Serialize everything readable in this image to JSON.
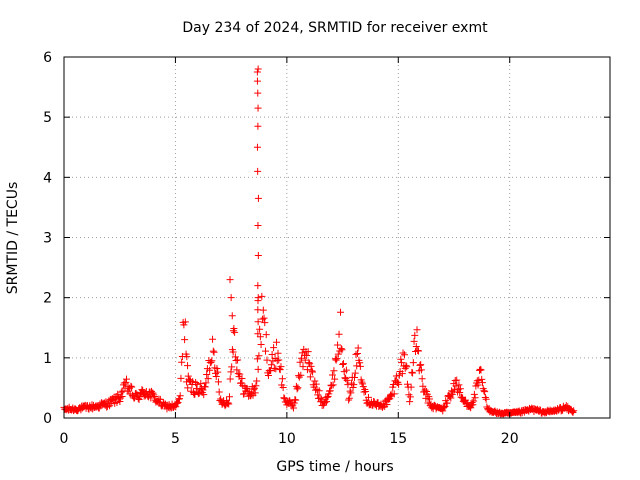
{
  "chart_data": {
    "type": "scatter",
    "title": "Day 234 of 2024, SRMTID for receiver exmt",
    "xlabel": "GPS time / hours",
    "ylabel": "SRMTID / TECUs",
    "xlim": [
      0,
      24.5
    ],
    "ylim": [
      0,
      6
    ],
    "xticks": [
      0,
      5,
      10,
      15,
      20
    ],
    "yticks": [
      0,
      1,
      2,
      3,
      4,
      5,
      6
    ],
    "grid": true,
    "marker": "+",
    "series": [
      {
        "name": "SRMTID",
        "color": "#ff0000",
        "x_start": 0.0,
        "x_step": 0.033,
        "envelope": [
          [
            0.0,
            0.15
          ],
          [
            0.5,
            0.15
          ],
          [
            1.0,
            0.18
          ],
          [
            1.5,
            0.2
          ],
          [
            2.0,
            0.25
          ],
          [
            2.5,
            0.35
          ],
          [
            2.8,
            0.55
          ],
          [
            3.2,
            0.35
          ],
          [
            3.7,
            0.45
          ],
          [
            4.2,
            0.3
          ],
          [
            4.5,
            0.2
          ],
          [
            5.0,
            0.2
          ],
          [
            5.2,
            0.3
          ],
          [
            5.4,
            1.75
          ],
          [
            5.6,
            0.55
          ],
          [
            6.0,
            0.5
          ],
          [
            6.3,
            0.45
          ],
          [
            6.7,
            1.3
          ],
          [
            7.0,
            0.3
          ],
          [
            7.4,
            0.25
          ],
          [
            7.6,
            1.5
          ],
          [
            7.9,
            0.6
          ],
          [
            8.3,
            0.4
          ],
          [
            8.6,
            0.5
          ],
          [
            8.9,
            1.8
          ],
          [
            9.2,
            0.8
          ],
          [
            9.6,
            1.15
          ],
          [
            9.9,
            0.3
          ],
          [
            10.3,
            0.2
          ],
          [
            10.8,
            1.2
          ],
          [
            11.2,
            0.6
          ],
          [
            11.6,
            0.25
          ],
          [
            12.0,
            0.5
          ],
          [
            12.4,
            1.5
          ],
          [
            12.8,
            0.3
          ],
          [
            13.2,
            1.1
          ],
          [
            13.6,
            0.3
          ],
          [
            14.2,
            0.2
          ],
          [
            14.6,
            0.3
          ],
          [
            15.3,
            1.05
          ],
          [
            15.5,
            0.3
          ],
          [
            15.8,
            1.4
          ],
          [
            16.1,
            0.5
          ],
          [
            16.5,
            0.2
          ],
          [
            17.0,
            0.15
          ],
          [
            17.6,
            0.6
          ],
          [
            17.9,
            0.3
          ],
          [
            18.3,
            0.2
          ],
          [
            18.7,
            0.75
          ],
          [
            19.0,
            0.15
          ],
          [
            19.5,
            0.08
          ],
          [
            20.0,
            0.08
          ],
          [
            20.5,
            0.1
          ],
          [
            21.0,
            0.15
          ],
          [
            21.5,
            0.1
          ],
          [
            22.0,
            0.12
          ],
          [
            22.5,
            0.18
          ],
          [
            22.9,
            0.1
          ]
        ],
        "spike": {
          "x": 8.7,
          "values": [
            5.8,
            5.75,
            5.6,
            5.4,
            5.15,
            4.85,
            4.5,
            4.1,
            3.65,
            3.2,
            2.7,
            2.2,
            2.0,
            1.95,
            1.8,
            1.6,
            1.4
          ]
        },
        "isolated_points": [
          [
            7.45,
            2.3
          ],
          [
            7.5,
            2.0
          ],
          [
            7.55,
            1.7
          ],
          [
            7.6,
            1.45
          ],
          [
            5.5,
            0.6
          ],
          [
            5.55,
            0.5
          ]
        ]
      }
    ]
  }
}
